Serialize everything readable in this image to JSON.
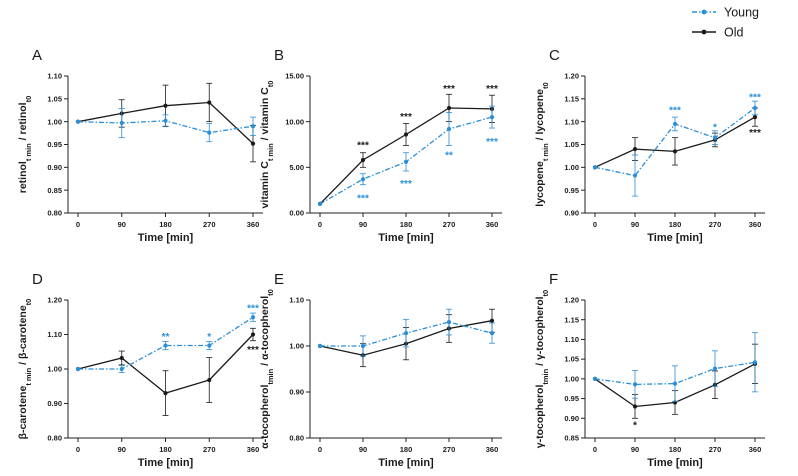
{
  "colors": {
    "young": "#2a8fd8",
    "old": "#1a1a1a"
  },
  "legend": [
    {
      "label": "Young",
      "series": "young"
    },
    {
      "label": "Old",
      "series": "old"
    }
  ],
  "chart_data": [
    {
      "type": "line",
      "panel": "A",
      "xlabel": "Time [min]",
      "ylabel": [
        {
          "t": "retinol"
        },
        {
          "t": "t min",
          "sub": true
        },
        {
          "t": " / retinol"
        },
        {
          "t": "t0",
          "sub": true
        }
      ],
      "x": [
        0,
        90,
        180,
        270,
        360
      ],
      "xticks": [
        "0",
        "90",
        "180",
        "270",
        "360"
      ],
      "ylim": [
        0.8,
        1.1
      ],
      "yticks": [
        "0.80",
        "0.85",
        "0.90",
        "0.95",
        "1.00",
        "1.05",
        "1.10"
      ],
      "series": [
        {
          "name": "Young",
          "key": "young",
          "values": [
            1.0,
            0.997,
            1.002,
            0.976,
            0.99
          ],
          "err": [
            0,
            0.032,
            0.013,
            0.02,
            0.02
          ]
        },
        {
          "name": "Old",
          "key": "old",
          "values": [
            1.0,
            1.018,
            1.035,
            1.042,
            0.952
          ],
          "err": [
            0,
            0.03,
            0.045,
            0.042,
            0.04
          ]
        }
      ],
      "annotations": []
    },
    {
      "type": "line",
      "panel": "B",
      "xlabel": "Time [min]",
      "ylabel": [
        {
          "t": "vitamin C"
        },
        {
          "t": "t min",
          "sub": true
        },
        {
          "t": " / vitamin C"
        },
        {
          "t": "t0",
          "sub": true
        }
      ],
      "x": [
        0,
        90,
        180,
        270,
        360
      ],
      "xticks": [
        "0",
        "90",
        "180",
        "270",
        "360"
      ],
      "ylim": [
        0,
        15
      ],
      "yticks": [
        "0.00",
        "5.00",
        "10.00",
        "15.00"
      ],
      "series": [
        {
          "name": "Young",
          "key": "young",
          "values": [
            1.0,
            3.7,
            5.6,
            9.2,
            10.5
          ],
          "err": [
            0,
            0.6,
            1.0,
            1.8,
            1.2
          ]
        },
        {
          "name": "Old",
          "key": "old",
          "values": [
            1.0,
            5.8,
            8.6,
            11.5,
            11.4
          ],
          "err": [
            0,
            0.8,
            1.2,
            1.5,
            1.5
          ]
        }
      ],
      "annotations": [
        {
          "x": 90,
          "y": 7.4,
          "text": "***",
          "series": "old"
        },
        {
          "x": 90,
          "y": 1.6,
          "text": "***",
          "series": "young"
        },
        {
          "x": 180,
          "y": 10.5,
          "text": "***",
          "series": "old"
        },
        {
          "x": 180,
          "y": 3.2,
          "text": "***",
          "series": "young"
        },
        {
          "x": 270,
          "y": 13.6,
          "text": "***",
          "series": "old"
        },
        {
          "x": 270,
          "y": 6.3,
          "text": "**",
          "series": "young"
        },
        {
          "x": 360,
          "y": 13.6,
          "text": "***",
          "series": "old"
        },
        {
          "x": 360,
          "y": 7.8,
          "text": "***",
          "series": "young"
        }
      ]
    },
    {
      "type": "line",
      "panel": "C",
      "xlabel": "Time [min]",
      "ylabel": [
        {
          "t": "lycopene"
        },
        {
          "t": "t min",
          "sub": true
        },
        {
          "t": " / lycopene"
        },
        {
          "t": "t0",
          "sub": true
        }
      ],
      "x": [
        0,
        90,
        180,
        270,
        360
      ],
      "xticks": [
        "0",
        "90",
        "180",
        "270",
        "360"
      ],
      "ylim": [
        0.9,
        1.2
      ],
      "yticks": [
        "0.90",
        "0.95",
        "1.00",
        "1.05",
        "1.10",
        "1.15",
        "1.20"
      ],
      "series": [
        {
          "name": "Young",
          "key": "young",
          "values": [
            1.0,
            0.982,
            1.095,
            1.065,
            1.13
          ],
          "err": [
            0,
            0.045,
            0.015,
            0.015,
            0.015
          ]
        },
        {
          "name": "Old",
          "key": "old",
          "values": [
            1.0,
            1.04,
            1.035,
            1.06,
            1.11
          ],
          "err": [
            0,
            0.025,
            0.03,
            0.015,
            0.02
          ]
        }
      ],
      "annotations": [
        {
          "x": 180,
          "y": 1.124,
          "text": "***",
          "series": "young"
        },
        {
          "x": 270,
          "y": 1.087,
          "text": "*",
          "series": "young"
        },
        {
          "x": 360,
          "y": 1.153,
          "text": "***",
          "series": "young"
        },
        {
          "x": 360,
          "y": 1.075,
          "text": "***",
          "series": "old"
        }
      ]
    },
    {
      "type": "line",
      "panel": "D",
      "xlabel": "Time [min]",
      "ylabel": [
        {
          "t": "β-carotene"
        },
        {
          "t": "t min",
          "sub": true
        },
        {
          "t": " / β-carotene"
        },
        {
          "t": "t0",
          "sub": true
        }
      ],
      "x": [
        0,
        90,
        180,
        270,
        360
      ],
      "xticks": [
        "0",
        "90",
        "180",
        "270",
        "360"
      ],
      "ylim": [
        0.8,
        1.2
      ],
      "yticks": [
        "0.80",
        "0.90",
        "1.00",
        "1.10",
        "1.20"
      ],
      "series": [
        {
          "name": "Young",
          "key": "young",
          "values": [
            1.0,
            1.0,
            1.068,
            1.068,
            1.15
          ],
          "err": [
            0,
            0.01,
            0.012,
            0.012,
            0.012
          ]
        },
        {
          "name": "Old",
          "key": "old",
          "values": [
            1.0,
            1.032,
            0.93,
            0.968,
            1.1
          ],
          "err": [
            0,
            0.02,
            0.065,
            0.065,
            0.018
          ]
        }
      ],
      "annotations": [
        {
          "x": 180,
          "y": 1.093,
          "text": "**",
          "series": "young"
        },
        {
          "x": 270,
          "y": 1.093,
          "text": "*",
          "series": "young"
        },
        {
          "x": 360,
          "y": 1.175,
          "text": "***",
          "series": "young"
        },
        {
          "x": 360,
          "y": 1.055,
          "text": "***",
          "series": "old"
        }
      ]
    },
    {
      "type": "line",
      "panel": "E",
      "xlabel": "Time [min]",
      "ylabel": [
        {
          "t": "α-tocopherol"
        },
        {
          "t": "tmin",
          "sub": true
        },
        {
          "t": " / α-tocopherol"
        },
        {
          "t": "t0",
          "sub": true
        }
      ],
      "x": [
        0,
        90,
        180,
        270,
        360
      ],
      "xticks": [
        "0",
        "90",
        "180",
        "270",
        "360"
      ],
      "ylim": [
        0.8,
        1.1
      ],
      "yticks": [
        "0.80",
        "0.90",
        "1.00",
        "1.10"
      ],
      "series": [
        {
          "name": "Young",
          "key": "young",
          "values": [
            1.0,
            1.0,
            1.028,
            1.052,
            1.028
          ],
          "err": [
            0,
            0.022,
            0.03,
            0.028,
            0.022
          ]
        },
        {
          "name": "Old",
          "key": "old",
          "values": [
            1.0,
            0.98,
            1.005,
            1.038,
            1.055
          ],
          "err": [
            0,
            0.025,
            0.035,
            0.03,
            0.025
          ]
        }
      ],
      "annotations": []
    },
    {
      "type": "line",
      "panel": "F",
      "xlabel": "Time [min]",
      "ylabel": [
        {
          "t": "γ-tocopherol"
        },
        {
          "t": "tmin",
          "sub": true
        },
        {
          "t": " / γ-tocopherol"
        },
        {
          "t": "t0",
          "sub": true
        }
      ],
      "x": [
        0,
        90,
        180,
        270,
        360
      ],
      "xticks": [
        "0",
        "90",
        "180",
        "270",
        "360"
      ],
      "ylim": [
        0.85,
        1.2
      ],
      "yticks": [
        "0.85",
        "0.90",
        "0.95",
        "1.00",
        "1.05",
        "1.10",
        "1.15",
        "1.20"
      ],
      "series": [
        {
          "name": "Young",
          "key": "young",
          "values": [
            1.0,
            0.986,
            0.988,
            1.026,
            1.042
          ],
          "err": [
            0,
            0.035,
            0.045,
            0.045,
            0.075
          ]
        },
        {
          "name": "Old",
          "key": "old",
          "values": [
            1.0,
            0.93,
            0.94,
            0.985,
            1.038
          ],
          "err": [
            0,
            0.03,
            0.03,
            0.035,
            0.05
          ]
        }
      ],
      "annotations": [
        {
          "x": 90,
          "y": 0.882,
          "text": "*",
          "series": "old"
        }
      ]
    }
  ]
}
